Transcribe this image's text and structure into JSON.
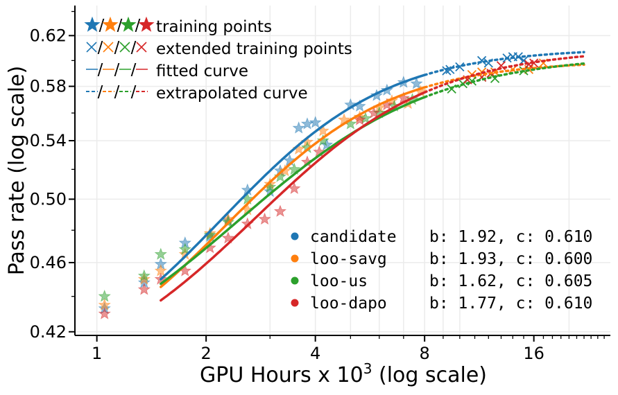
{
  "chart_data": {
    "type": "scatter",
    "xlabel": "GPU Hours x 10",
    "xlabel_sup": "3",
    "xlabel_suffix": " (log scale)",
    "ylabel": "Pass rate (log scale)",
    "x_scale": "log",
    "y_scale": "log",
    "xlim": [
      0.87,
      26
    ],
    "ylim": [
      0.418,
      0.645
    ],
    "x_ticks": [
      1,
      2,
      4,
      8,
      16
    ],
    "x_tick_labels": [
      "1",
      "2",
      "4",
      "8",
      "16"
    ],
    "y_ticks": [
      0.42,
      0.46,
      0.5,
      0.54,
      0.58,
      0.62
    ],
    "y_tick_labels": [
      "0.42",
      "0.46",
      "0.50",
      "0.54",
      "0.58",
      "0.62"
    ],
    "grid": true,
    "legend": {
      "position": "top-left",
      "entries": [
        {
          "separator": "/",
          "label": "training points",
          "marker": "star"
        },
        {
          "separator": "/",
          "label": "extended training points",
          "marker": "x"
        },
        {
          "separator": "/",
          "label": "fitted curve",
          "marker": "solid-line"
        },
        {
          "separator": "/",
          "label": "extrapolated curve",
          "marker": "dashed-line"
        }
      ]
    },
    "params_legend_position": "bottom-right",
    "series": [
      {
        "name": "candidate",
        "params": "b: 1.92, c: 0.610",
        "color": "#1f77b4",
        "curve": {
          "A": 0.61,
          "B": 1.92,
          "Cmid": 2.5
        },
        "fit_range": [
          1.5,
          8.0
        ],
        "extrap_range": [
          8.0,
          22.0
        ],
        "training_points": [
          [
            1.05,
            0.433
          ],
          [
            1.35,
            0.448
          ],
          [
            1.5,
            0.459
          ],
          [
            1.75,
            0.472
          ],
          [
            2.05,
            0.476
          ],
          [
            2.3,
            0.486
          ],
          [
            2.6,
            0.506
          ],
          [
            3.0,
            0.505
          ],
          [
            3.2,
            0.519
          ],
          [
            3.4,
            0.526
          ],
          [
            3.6,
            0.549
          ],
          [
            3.8,
            0.552
          ],
          [
            4.0,
            0.553
          ],
          [
            4.3,
            0.537
          ],
          [
            5.0,
            0.566
          ],
          [
            5.3,
            0.565
          ],
          [
            5.9,
            0.573
          ],
          [
            6.3,
            0.577
          ],
          [
            7.0,
            0.583
          ],
          [
            7.6,
            0.582
          ]
        ],
        "extended_points": [
          [
            9.2,
            0.592
          ],
          [
            9.4,
            0.593
          ],
          [
            10.0,
            0.595
          ],
          [
            11.5,
            0.6
          ],
          [
            12.0,
            0.598
          ],
          [
            13.5,
            0.602
          ],
          [
            14.0,
            0.603
          ],
          [
            14.5,
            0.603
          ],
          [
            15.0,
            0.6
          ]
        ]
      },
      {
        "name": "loo-savg",
        "params": "b: 1.93, c: 0.600",
        "color": "#ff7f0e",
        "curve": {
          "A": 0.6,
          "B": 1.93,
          "Cmid": 2.55
        },
        "fit_range": [
          1.5,
          8.0
        ],
        "extrap_range": [
          8.0,
          22.0
        ],
        "training_points": [
          [
            1.05,
            0.435
          ],
          [
            1.35,
            0.45
          ],
          [
            1.5,
            0.455
          ],
          [
            1.75,
            0.465
          ],
          [
            2.05,
            0.478
          ],
          [
            2.3,
            0.487
          ],
          [
            2.6,
            0.493
          ],
          [
            3.0,
            0.51
          ],
          [
            3.3,
            0.519
          ],
          [
            3.6,
            0.534
          ],
          [
            3.8,
            0.539
          ],
          [
            4.2,
            0.547
          ],
          [
            4.8,
            0.555
          ],
          [
            5.3,
            0.557
          ],
          [
            6.0,
            0.564
          ],
          [
            6.5,
            0.569
          ],
          [
            7.2,
            0.567
          ],
          [
            7.8,
            0.576
          ]
        ],
        "extended_points": [
          [
            10.8,
            0.589
          ],
          [
            11.5,
            0.591
          ],
          [
            12.5,
            0.591
          ],
          [
            14.0,
            0.593
          ],
          [
            15.5,
            0.593
          ],
          [
            17.0,
            0.598
          ]
        ]
      },
      {
        "name": "loo-us",
        "params": "b: 1.62, c: 0.605",
        "color": "#2ca02c",
        "curve": {
          "A": 0.605,
          "B": 1.62,
          "Cmid": 2.8
        },
        "fit_range": [
          1.5,
          8.0
        ],
        "extrap_range": [
          8.0,
          22.0
        ],
        "training_points": [
          [
            1.05,
            0.44
          ],
          [
            1.35,
            0.452
          ],
          [
            1.5,
            0.465
          ],
          [
            1.75,
            0.468
          ],
          [
            2.05,
            0.477
          ],
          [
            2.3,
            0.485
          ],
          [
            2.6,
            0.5
          ],
          [
            3.0,
            0.508
          ],
          [
            3.2,
            0.515
          ],
          [
            3.5,
            0.52
          ],
          [
            3.8,
            0.535
          ],
          [
            4.2,
            0.54
          ],
          [
            5.0,
            0.552
          ],
          [
            5.5,
            0.556
          ],
          [
            6.0,
            0.56
          ],
          [
            6.6,
            0.565
          ],
          [
            7.4,
            0.57
          ]
        ],
        "extended_points": [
          [
            9.5,
            0.578
          ],
          [
            10.2,
            0.582
          ],
          [
            10.8,
            0.584
          ],
          [
            11.5,
            0.587
          ],
          [
            12.5,
            0.586
          ],
          [
            15.0,
            0.592
          ]
        ]
      },
      {
        "name": "loo-dapo",
        "params": "b: 1.77, c: 0.610",
        "color": "#d62728",
        "curve": {
          "A": 0.61,
          "B": 1.77,
          "Cmid": 3.1
        },
        "fit_range": [
          1.5,
          8.0
        ],
        "extrap_range": [
          8.0,
          22.0
        ],
        "training_points": [
          [
            1.05,
            0.43
          ],
          [
            1.35,
            0.444
          ],
          [
            1.5,
            0.45
          ],
          [
            1.75,
            0.455
          ],
          [
            2.05,
            0.469
          ],
          [
            2.3,
            0.475
          ],
          [
            2.6,
            0.484
          ],
          [
            2.9,
            0.487
          ],
          [
            3.2,
            0.492
          ],
          [
            3.5,
            0.507
          ],
          [
            3.8,
            0.525
          ],
          [
            4.1,
            0.532
          ],
          [
            5.3,
            0.555
          ],
          [
            5.8,
            0.56
          ],
          [
            6.3,
            0.566
          ],
          [
            7.0,
            0.571
          ]
        ],
        "extended_points": [
          [
            10.5,
            0.585
          ],
          [
            11.5,
            0.587
          ],
          [
            12.2,
            0.59
          ],
          [
            13.0,
            0.596
          ],
          [
            15.5,
            0.597
          ],
          [
            16.0,
            0.598
          ]
        ]
      }
    ]
  }
}
